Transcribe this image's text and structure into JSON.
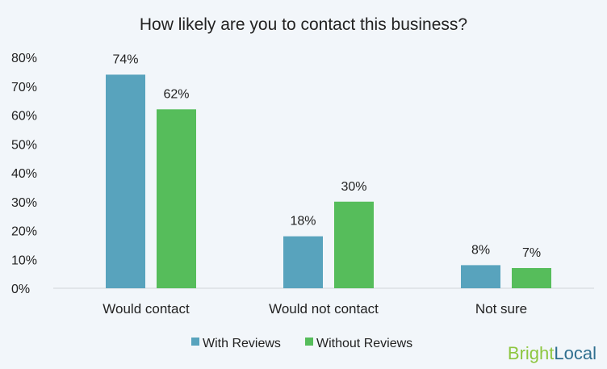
{
  "chart_data": {
    "type": "bar",
    "title": "How likely are you to contact this business?",
    "categories": [
      "Would contact",
      "Would not contact",
      "Not sure"
    ],
    "series": [
      {
        "name": "With Reviews",
        "values": [
          74,
          18,
          8
        ],
        "color": "#58a3bd"
      },
      {
        "name": "Without Reviews",
        "values": [
          62,
          30,
          7
        ],
        "color": "#56bd5b"
      }
    ],
    "ylim": [
      0,
      80
    ],
    "yticks": [
      "0%",
      "10%",
      "20%",
      "30%",
      "40%",
      "50%",
      "60%",
      "70%",
      "80%"
    ],
    "data_labels": [
      [
        "74%",
        "18%",
        "8%"
      ],
      [
        "62%",
        "30%",
        "7%"
      ]
    ],
    "value_suffix": "%",
    "grid": false,
    "legend_position": "bottom"
  },
  "branding": {
    "part1": "Bright",
    "part2": "Local"
  }
}
